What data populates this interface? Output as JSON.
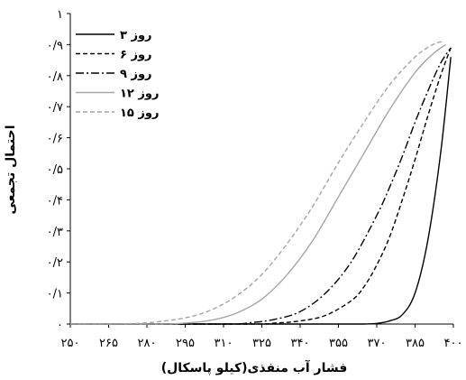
{
  "chart_data": {
    "type": "line",
    "xlabel": "فشار آب منفذی(کیلو پاسکال)",
    "ylabel": "احتمال تجمعی",
    "xlim": [
      250,
      400
    ],
    "ylim": [
      0,
      1
    ],
    "x_ticks": [
      {
        "value": 250,
        "label": "۲۵۰"
      },
      {
        "value": 265,
        "label": "۲۶۵"
      },
      {
        "value": 280,
        "label": "۲۸۰"
      },
      {
        "value": 295,
        "label": "۲۹۵"
      },
      {
        "value": 310,
        "label": "۳۱۰"
      },
      {
        "value": 325,
        "label": "۳۲۵"
      },
      {
        "value": 340,
        "label": "۳۴۰"
      },
      {
        "value": 355,
        "label": "۳۵۵"
      },
      {
        "value": 370,
        "label": "۳۷۰"
      },
      {
        "value": 385,
        "label": "۳۸۵"
      },
      {
        "value": 400,
        "label": "۴۰۰"
      }
    ],
    "y_ticks": [
      {
        "value": 0,
        "label": "۰"
      },
      {
        "value": 0.1,
        "label": "۰/۱"
      },
      {
        "value": 0.2,
        "label": "۰/۲"
      },
      {
        "value": 0.3,
        "label": "۰/۳"
      },
      {
        "value": 0.4,
        "label": "۰/۴"
      },
      {
        "value": 0.5,
        "label": "۰/۵"
      },
      {
        "value": 0.6,
        "label": "۰/۶"
      },
      {
        "value": 0.7,
        "label": "۰/۷"
      },
      {
        "value": 0.8,
        "label": "۰/۸"
      },
      {
        "value": 0.9,
        "label": "۰/۹"
      },
      {
        "value": 1,
        "label": "۱"
      }
    ],
    "grid": false,
    "legend_position": "top-left",
    "series": [
      {
        "name": "۳ روز",
        "style": "solid",
        "color": "#000000",
        "x": [
          250,
          355,
          360,
          365,
          370,
          375,
          380,
          385,
          390,
          395,
          399
        ],
        "y": [
          0,
          0,
          0,
          0,
          0.002,
          0.01,
          0.03,
          0.1,
          0.27,
          0.55,
          0.86
        ]
      },
      {
        "name": "۶ روز",
        "style": "dashed",
        "color": "#000000",
        "x": [
          250,
          320,
          330,
          340,
          350,
          360,
          365,
          370,
          375,
          380,
          385,
          390,
          395,
          399
        ],
        "y": [
          0,
          0,
          0.003,
          0.01,
          0.028,
          0.075,
          0.12,
          0.19,
          0.28,
          0.4,
          0.53,
          0.67,
          0.8,
          0.89
        ]
      },
      {
        "name": "۹ روز",
        "style": "dashdot",
        "color": "#000000",
        "x": [
          250,
          310,
          320,
          330,
          340,
          350,
          360,
          370,
          375,
          380,
          385,
          390,
          395,
          399
        ],
        "y": [
          0,
          0,
          0.004,
          0.015,
          0.04,
          0.1,
          0.2,
          0.35,
          0.44,
          0.54,
          0.65,
          0.75,
          0.84,
          0.89
        ]
      },
      {
        "name": "۱۲ روز",
        "style": "solid",
        "color": "#a6a6a6",
        "x": [
          250,
          285,
          295,
          305,
          315,
          325,
          335,
          345,
          355,
          365,
          375,
          385,
          392,
          397
        ],
        "y": [
          0,
          0,
          0.003,
          0.012,
          0.035,
          0.08,
          0.16,
          0.27,
          0.41,
          0.55,
          0.69,
          0.81,
          0.87,
          0.9
        ]
      },
      {
        "name": "۱۵ روز",
        "style": "dashed",
        "color": "#a6a6a6",
        "x": [
          250,
          265,
          280,
          295,
          305,
          315,
          325,
          335,
          345,
          355,
          365,
          375,
          385,
          392,
          396
        ],
        "y": [
          0,
          0,
          0.004,
          0.02,
          0.045,
          0.09,
          0.16,
          0.26,
          0.38,
          0.52,
          0.65,
          0.77,
          0.86,
          0.9,
          0.91
        ]
      }
    ]
  }
}
